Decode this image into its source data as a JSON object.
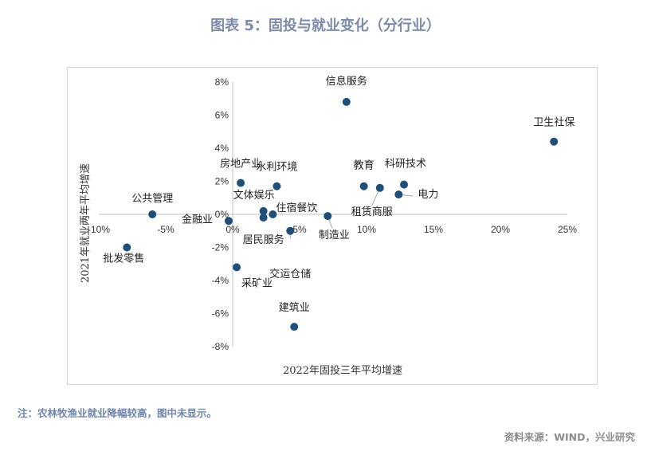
{
  "title": "图表 5：固投与就业变化（分行业）",
  "note": "注：农林牧渔业就业降幅较高，图中未显示。",
  "source": "资料来源：WIND，兴业研究",
  "chart_data": {
    "type": "scatter",
    "xlabel": "2022年固投三年平均增速",
    "ylabel": "2021年就业两年平均增速",
    "xlim": [
      -10,
      25
    ],
    "ylim": [
      -8,
      8
    ],
    "x_ticks": [
      "-10%",
      "-5%",
      "0%",
      "5%",
      "10%",
      "15%",
      "20%",
      "25%"
    ],
    "y_ticks": [
      "-8%",
      "-6%",
      "-4%",
      "-2%",
      "0%",
      "2%",
      "4%",
      "6%",
      "8%"
    ],
    "grid": false,
    "marker_color": "#1f4e79",
    "points": [
      {
        "label": "信息服务",
        "x": 8.5,
        "y": 6.8
      },
      {
        "label": "卫生社保",
        "x": 24.0,
        "y": 4.4
      },
      {
        "label": "房地产业",
        "x": 0.6,
        "y": 1.9
      },
      {
        "label": "水利环境",
        "x": 3.3,
        "y": 1.7
      },
      {
        "label": "教育",
        "x": 9.8,
        "y": 1.7
      },
      {
        "label": "科研技术",
        "x": 12.8,
        "y": 1.8
      },
      {
        "label": "租赁商服",
        "x": 11.0,
        "y": 1.6
      },
      {
        "label": "电力",
        "x": 12.4,
        "y": 1.2
      },
      {
        "label": "公共管理",
        "x": -6.0,
        "y": 0.0
      },
      {
        "label": "文体娱乐",
        "x": 2.3,
        "y": 0.2
      },
      {
        "label": "住宿餐饮",
        "x": 3.0,
        "y": 0.0
      },
      {
        "label": "居民服务",
        "x": 2.3,
        "y": -0.2
      },
      {
        "label": "金融业",
        "x": -0.3,
        "y": -0.4
      },
      {
        "label": "制造业",
        "x": 7.1,
        "y": -0.1
      },
      {
        "label": "交运仓储",
        "x": 4.3,
        "y": -1.0
      },
      {
        "label": "批发零售",
        "x": -7.9,
        "y": -2.0
      },
      {
        "label": "采矿业",
        "x": 0.3,
        "y": -3.2
      },
      {
        "label": "建筑业",
        "x": 4.6,
        "y": -6.8
      }
    ]
  }
}
